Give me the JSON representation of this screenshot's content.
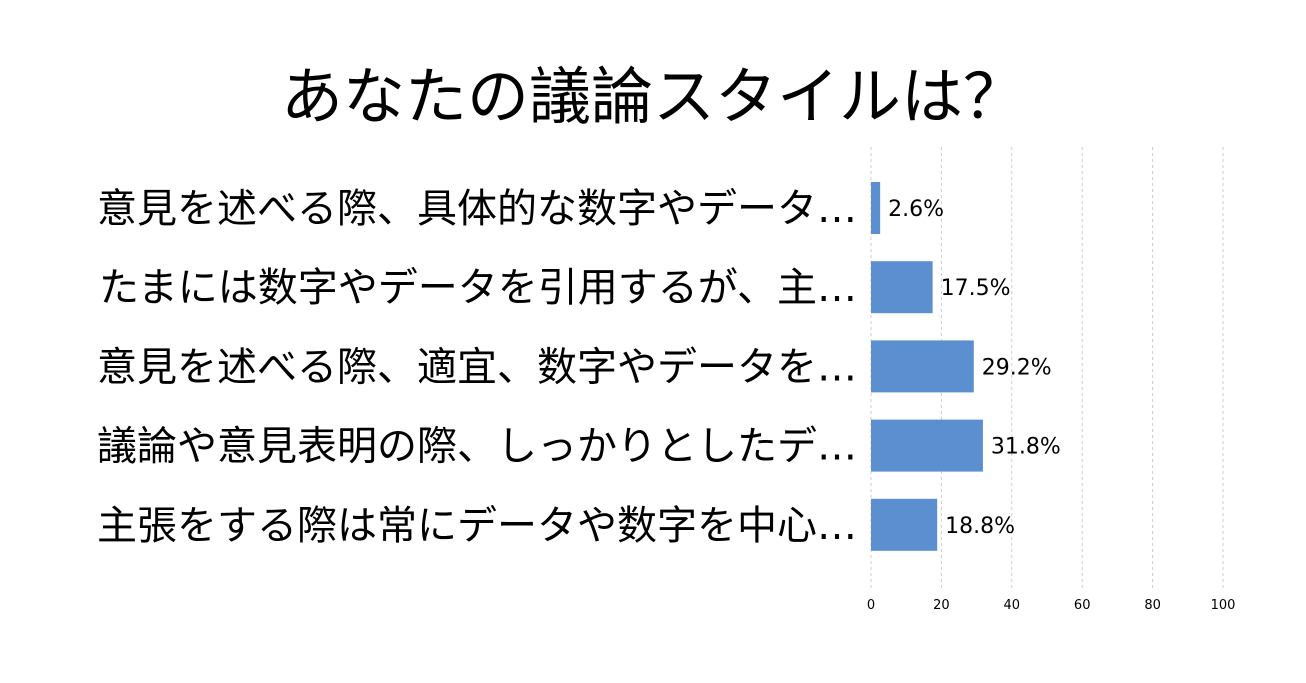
{
  "chart_data": {
    "type": "bar",
    "orientation": "horizontal",
    "title": "あなたの議論スタイルは？",
    "categories": [
      "意見を述べる際、具体的な数字やデータ…",
      "たまには数字やデータを引用するが、主…",
      "意見を述べる際、適宜、数字やデータを…",
      "議論や意見表明の際、しっかりとしたデ…",
      "主張をする際は常にデータや数字を中心…"
    ],
    "values": [
      2.6,
      17.5,
      29.2,
      31.8,
      18.8
    ],
    "value_labels": [
      "2.6%",
      "17.5%",
      "29.2%",
      "31.8%",
      "18.8%"
    ],
    "xlim": [
      0,
      100
    ],
    "xticks": [
      0,
      20,
      40,
      60,
      80,
      100
    ],
    "grid": "vertical dashed",
    "bar_color": "#5b8fd0",
    "grid_color": "#cccccc"
  }
}
